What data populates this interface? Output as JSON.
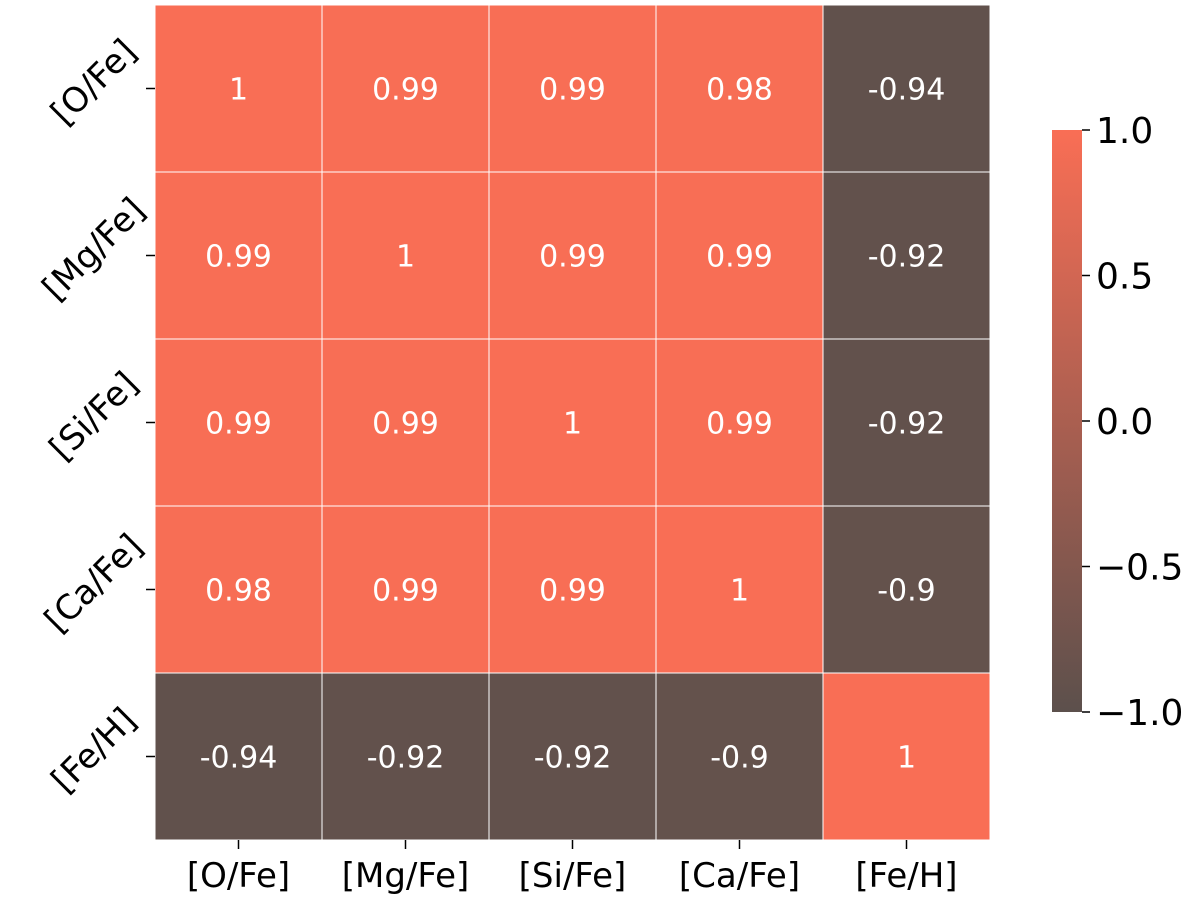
{
  "chart_data": {
    "type": "heatmap",
    "title": "",
    "xlabel": "",
    "ylabel": "",
    "x_categories": [
      "[O/Fe]",
      "[Mg/Fe]",
      "[Si/Fe]",
      "[Ca/Fe]",
      "[Fe/H]"
    ],
    "y_categories": [
      "[O/Fe]",
      "[Mg/Fe]",
      "[Si/Fe]",
      "[Ca/Fe]",
      "[Fe/H]"
    ],
    "values": [
      [
        1,
        0.99,
        0.99,
        0.98,
        -0.94
      ],
      [
        0.99,
        1,
        0.99,
        0.99,
        -0.92
      ],
      [
        0.99,
        0.99,
        1,
        0.99,
        -0.92
      ],
      [
        0.98,
        0.99,
        0.99,
        1,
        -0.9
      ],
      [
        -0.94,
        -0.92,
        -0.92,
        -0.9,
        1
      ]
    ],
    "cell_labels": [
      [
        "1",
        "0.99",
        "0.99",
        "0.98",
        "-0.94"
      ],
      [
        "0.99",
        "1",
        "0.99",
        "0.99",
        "-0.92"
      ],
      [
        "0.99",
        "0.99",
        "1",
        "0.99",
        "-0.92"
      ],
      [
        "0.98",
        "0.99",
        "0.99",
        "1",
        "-0.9"
      ],
      [
        "-0.94",
        "-0.92",
        "-0.92",
        "-0.9",
        "1"
      ]
    ],
    "colorbar": {
      "vmin": -1.0,
      "vmax": 1.0,
      "ticks": [
        1.0,
        0.5,
        0.0,
        -0.5,
        -1.0
      ],
      "tick_labels": [
        "1.0",
        "0.5",
        "0.0",
        "−0.5",
        "−1.0"
      ],
      "color_low": "#5c504c",
      "color_high": "#f96e55"
    },
    "grid_line_color": "#ffffff",
    "annotation_color": "#ffffff"
  }
}
